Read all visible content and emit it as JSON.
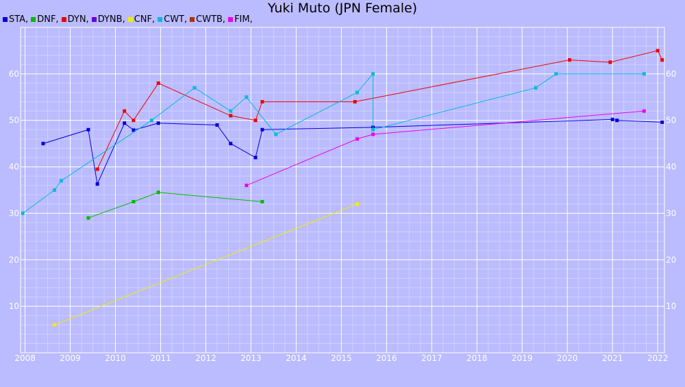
{
  "chart_data": {
    "type": "line",
    "title": "Yuki Muto (JPN Female)",
    "xlabel": "",
    "ylabel": "",
    "xlim": [
      2007.9,
      2022.15
    ],
    "ylim": [
      0,
      70
    ],
    "x_ticks": [
      "2008",
      "2009",
      "2010",
      "2011",
      "2012",
      "2013",
      "2014",
      "2015",
      "2016",
      "2017",
      "2018",
      "2019",
      "2020",
      "2021",
      "2022"
    ],
    "y_ticks": [
      10,
      20,
      30,
      40,
      50,
      60
    ],
    "grid": true,
    "legend_placement": "top-left",
    "legend": [
      {
        "label": "STA,",
        "color": "#0000dd"
      },
      {
        "label": "DNF,",
        "color": "#00bb00"
      },
      {
        "label": "DYN,",
        "color": "#ee0000"
      },
      {
        "label": "DYNB,",
        "color": "#6600dd"
      },
      {
        "label": "CNF,",
        "color": "#eeee00"
      },
      {
        "label": "CWT,",
        "color": "#00bbdd"
      },
      {
        "label": "CWTB,",
        "color": "#aa3300"
      },
      {
        "label": "FIM,",
        "color": "#ee00ee"
      }
    ],
    "series": [
      {
        "name": "STA",
        "color": "#0000dd",
        "points": [
          [
            2008.4,
            45
          ],
          [
            2009.4,
            48
          ],
          [
            2009.6,
            36.3
          ],
          [
            2010.2,
            49.4
          ],
          [
            2010.4,
            47.9
          ],
          [
            2010.95,
            49.4
          ],
          [
            2012.25,
            49
          ],
          [
            2012.55,
            45
          ],
          [
            2013.1,
            42
          ],
          [
            2013.25,
            48
          ],
          [
            2015.7,
            48.5
          ],
          [
            2021,
            50.2
          ],
          [
            2021.1,
            50
          ],
          [
            2022.1,
            49.6
          ]
        ]
      },
      {
        "name": "DNF",
        "color": "#00bb00",
        "points": [
          [
            2009.4,
            29
          ],
          [
            2010.4,
            32.5
          ],
          [
            2010.95,
            34.5
          ],
          [
            2013.25,
            32.5
          ]
        ]
      },
      {
        "name": "DYN",
        "color": "#ee0000",
        "points": [
          [
            2009.6,
            39.5
          ],
          [
            2010.2,
            52
          ],
          [
            2010.4,
            50
          ],
          [
            2010.95,
            58
          ],
          [
            2012.55,
            51
          ],
          [
            2013.1,
            50
          ],
          [
            2013.25,
            54
          ],
          [
            2015.3,
            54
          ],
          [
            2020.05,
            63
          ],
          [
            2020.95,
            62.5
          ],
          [
            2022,
            65
          ],
          [
            2022.1,
            63
          ]
        ]
      },
      {
        "name": "CNF",
        "color": "#eeee00",
        "points": [
          [
            2008.65,
            6
          ],
          [
            2015.35,
            32
          ]
        ]
      },
      {
        "name": "CWT",
        "color": "#00bbdd",
        "points": [
          [
            2007.95,
            30
          ],
          [
            2008.65,
            35
          ],
          [
            2008.8,
            37
          ],
          [
            2010.8,
            50
          ],
          [
            2011.75,
            57
          ],
          [
            2012.55,
            52
          ],
          [
            2012.9,
            55
          ],
          [
            2013.55,
            47
          ],
          [
            2015.35,
            56
          ],
          [
            2015.7,
            60
          ],
          [
            2015.7,
            48
          ],
          [
            2019.3,
            57
          ],
          [
            2019.75,
            60
          ],
          [
            2021.7,
            60
          ]
        ]
      },
      {
        "name": "FIM",
        "color": "#ee00ee",
        "points": [
          [
            2012.9,
            36
          ],
          [
            2015.35,
            46
          ],
          [
            2015.7,
            47
          ],
          [
            2021.7,
            52
          ]
        ]
      }
    ]
  }
}
